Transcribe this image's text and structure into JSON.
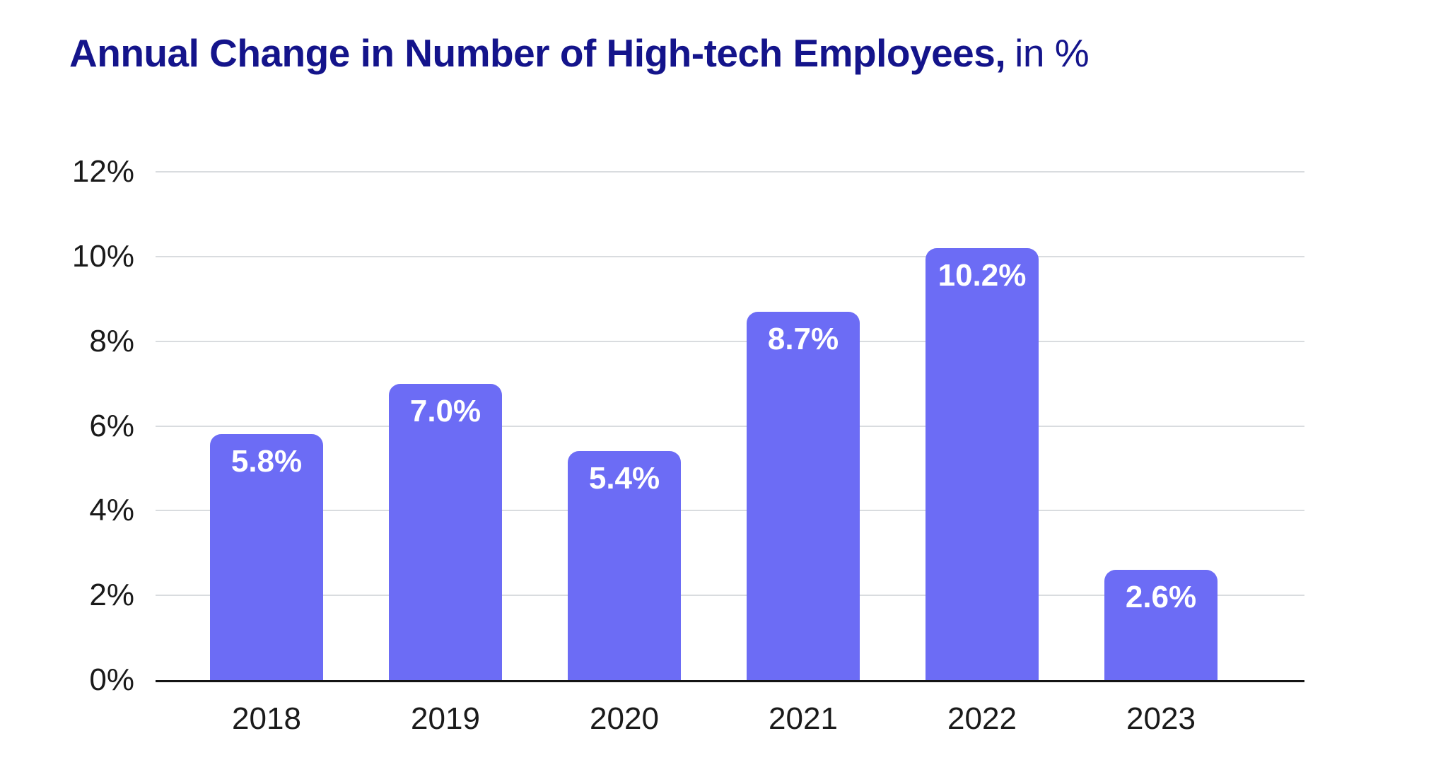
{
  "title": {
    "main": "Annual Change in Number of High-tech Employees,",
    "suffix": "in %",
    "color": "#14148B"
  },
  "chart_data": {
    "type": "bar",
    "title": "Annual Change in Number of High-tech Employees, in %",
    "categories": [
      "2018",
      "2019",
      "2020",
      "2021",
      "2022",
      "2023"
    ],
    "values": [
      5.8,
      7.0,
      5.4,
      8.7,
      10.2,
      2.6
    ],
    "bar_labels": [
      "5.8%",
      "7.0%",
      "5.4%",
      "8.7%",
      "10.2%",
      "2.6%"
    ],
    "xlabel": "",
    "ylabel": "",
    "ylim": [
      0,
      12
    ],
    "yticks": [
      {
        "label": "12%",
        "value": 12
      },
      {
        "label": "10%",
        "value": 10
      },
      {
        "label": "8%",
        "value": 8
      },
      {
        "label": "6%",
        "value": 6
      },
      {
        "label": "4%",
        "value": 4
      },
      {
        "label": "2%",
        "value": 2
      },
      {
        "label": "0%",
        "value": 0
      }
    ],
    "grid": true,
    "legend": false,
    "colors": {
      "bar": "#6C6CF5",
      "bar_label": "#FFFFFF",
      "grid_line": "#D9DCDF",
      "axis_line": "#141414",
      "tick_text": "#1A1A1A"
    }
  }
}
